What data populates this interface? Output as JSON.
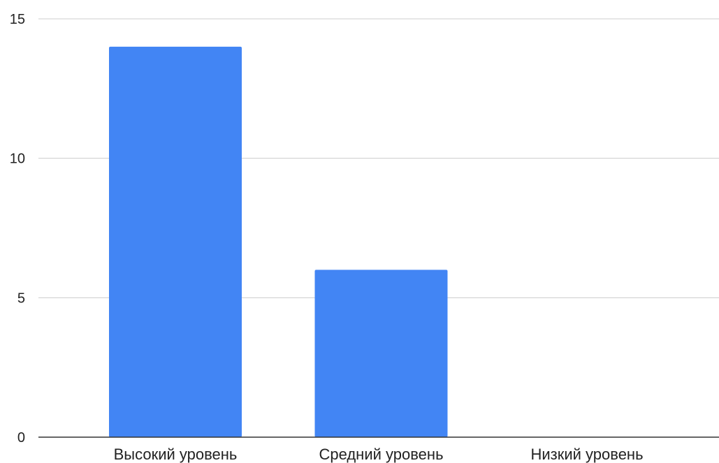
{
  "chart_data": {
    "type": "bar",
    "categories": [
      "Высокий уровень",
      "Средний уровень",
      "Низкий уровень"
    ],
    "values": [
      14,
      6,
      0
    ],
    "ylim": [
      0,
      15
    ],
    "yticks": [
      0,
      5,
      10,
      15
    ],
    "grid": true,
    "legend": "none",
    "bar_color": "#4285f4",
    "grid_color": "#cccccc",
    "axis_color": "#333333"
  }
}
